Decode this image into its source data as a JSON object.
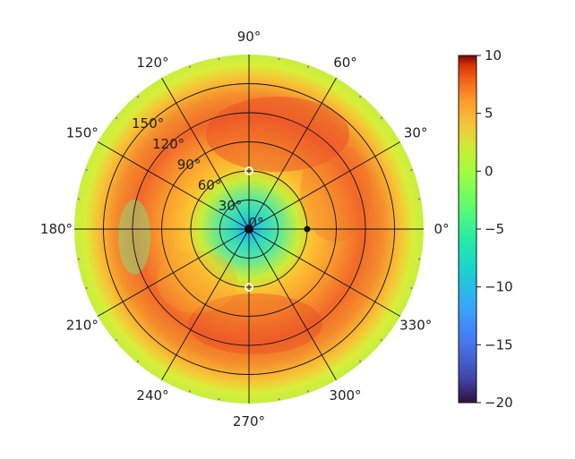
{
  "chart_data": {
    "type": "heatmap",
    "projection": "polar",
    "title": "",
    "angle_ticks": [
      "0°",
      "30°",
      "60°",
      "90°",
      "120°",
      "150°",
      "180°",
      "210°",
      "240°",
      "270°",
      "300°",
      "330°"
    ],
    "radial_ticks": [
      "30°",
      "60°",
      "90°",
      "120°",
      "150°"
    ],
    "radial_tick_values": [
      30,
      60,
      90,
      120,
      150
    ],
    "r_max": 180,
    "grid": true,
    "colormap": "turbo",
    "colorbar": {
      "vmin": -20,
      "vmax": 10,
      "ticks": [
        10,
        5,
        0,
        -5,
        -10,
        -15,
        -20
      ],
      "tick_labels": [
        "10",
        "5",
        "0",
        "−5",
        "−10",
        "−15",
        "−20"
      ]
    },
    "field_description_samples": [
      {
        "r": 0,
        "value": -9
      },
      {
        "r": 30,
        "value": -8
      },
      {
        "r": 60,
        "value": -1
      },
      {
        "r": 90,
        "value": 3
      },
      {
        "r": 120,
        "value": 5
      },
      {
        "r": 150,
        "value": 2
      },
      {
        "r": 175,
        "value": -2
      }
    ],
    "markers": [
      {
        "theta_deg": 90,
        "r": 60,
        "style": "open-circle"
      },
      {
        "theta_deg": 270,
        "r": 60,
        "style": "open-circle"
      },
      {
        "theta_deg": 0,
        "r": 60,
        "style": "filled-dark"
      },
      {
        "theta_deg": 0,
        "r": 0,
        "style": "filled-dark"
      }
    ]
  }
}
